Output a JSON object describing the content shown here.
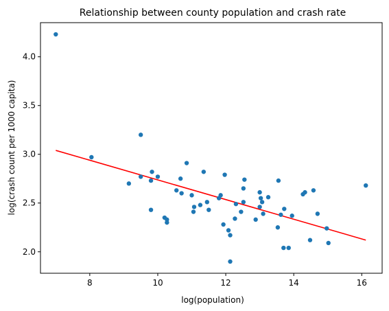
{
  "chart_data": {
    "type": "scatter",
    "title": "Relationship between county population and crash rate",
    "xlabel": "log(population)",
    "ylabel": "log(crash count per 1000 capita)",
    "xlim": [
      6.55,
      16.6
    ],
    "ylim": [
      1.78,
      4.35
    ],
    "xticks": [
      8,
      10,
      12,
      14,
      16
    ],
    "yticks": [
      2.0,
      2.5,
      3.0,
      3.5,
      4.0
    ],
    "xtick_labels": [
      "8",
      "10",
      "12",
      "14",
      "16"
    ],
    "ytick_labels": [
      "2.0",
      "2.5",
      "3.0",
      "3.5",
      "4.0"
    ],
    "grid": false,
    "point_color": "#1f77b4",
    "line_color": "#ff0000",
    "points": [
      [
        7.0,
        4.23
      ],
      [
        8.05,
        2.97
      ],
      [
        9.15,
        2.7
      ],
      [
        9.5,
        3.2
      ],
      [
        9.5,
        2.77
      ],
      [
        9.8,
        2.43
      ],
      [
        9.8,
        2.73
      ],
      [
        9.83,
        2.82
      ],
      [
        10.0,
        2.77
      ],
      [
        10.2,
        2.35
      ],
      [
        10.27,
        2.3
      ],
      [
        10.27,
        2.33
      ],
      [
        10.55,
        2.63
      ],
      [
        10.67,
        2.75
      ],
      [
        10.7,
        2.6
      ],
      [
        10.85,
        2.91
      ],
      [
        11.0,
        2.58
      ],
      [
        11.05,
        2.41
      ],
      [
        11.07,
        2.46
      ],
      [
        11.25,
        2.48
      ],
      [
        11.35,
        2.82
      ],
      [
        11.45,
        2.51
      ],
      [
        11.5,
        2.43
      ],
      [
        11.8,
        2.55
      ],
      [
        11.85,
        2.58
      ],
      [
        11.93,
        2.28
      ],
      [
        11.97,
        2.79
      ],
      [
        12.08,
        2.22
      ],
      [
        12.13,
        2.17
      ],
      [
        12.13,
        1.9
      ],
      [
        12.27,
        2.34
      ],
      [
        12.3,
        2.49
      ],
      [
        12.45,
        2.41
      ],
      [
        12.52,
        2.51
      ],
      [
        12.52,
        2.65
      ],
      [
        12.55,
        2.74
      ],
      [
        12.88,
        2.33
      ],
      [
        13.0,
        2.46
      ],
      [
        13.0,
        2.61
      ],
      [
        13.03,
        2.55
      ],
      [
        13.07,
        2.51
      ],
      [
        13.1,
        2.39
      ],
      [
        13.25,
        2.56
      ],
      [
        13.53,
        2.25
      ],
      [
        13.55,
        2.73
      ],
      [
        13.62,
        2.38
      ],
      [
        13.7,
        2.04
      ],
      [
        13.72,
        2.44
      ],
      [
        13.85,
        2.04
      ],
      [
        13.95,
        2.37
      ],
      [
        14.27,
        2.59
      ],
      [
        14.33,
        2.61
      ],
      [
        14.48,
        2.12
      ],
      [
        14.58,
        2.63
      ],
      [
        14.7,
        2.39
      ],
      [
        14.97,
        2.24
      ],
      [
        15.02,
        2.09
      ],
      [
        16.12,
        2.68
      ]
    ],
    "fit_line": {
      "x": [
        7.0,
        16.12
      ],
      "y": [
        3.04,
        2.12
      ]
    }
  }
}
